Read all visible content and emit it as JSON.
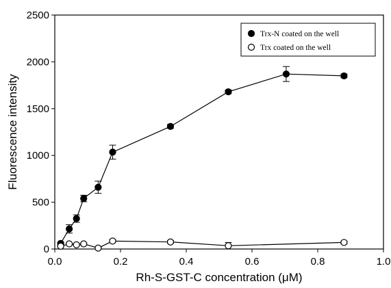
{
  "chart_data": {
    "type": "line",
    "xlabel": "Rh-S-GST-C concentration (μM)",
    "ylabel": "Fluorescence intensity",
    "xlim": [
      0.0,
      1.0
    ],
    "ylim": [
      0,
      2500
    ],
    "xticks": [
      0.0,
      0.2,
      0.4,
      0.6,
      0.8,
      1.0
    ],
    "xtick_labels": [
      "0.0",
      "0.2",
      "0.4",
      "0.6",
      "0.8",
      "1.0"
    ],
    "yticks": [
      0,
      500,
      1000,
      1500,
      2000,
      2500
    ],
    "ytick_labels": [
      "0",
      "500",
      "1000",
      "1500",
      "2000",
      "2500"
    ],
    "grid": false,
    "legend_position": "top-right",
    "series": [
      {
        "name": "Trx-N coated on the well",
        "marker": "filled-circle",
        "color": "#000000",
        "x": [
          0.018,
          0.044,
          0.066,
          0.088,
          0.132,
          0.176,
          0.352,
          0.528,
          0.704,
          0.88
        ],
        "y": [
          60,
          215,
          325,
          540,
          660,
          1035,
          1310,
          1680,
          1870,
          1850
        ],
        "error": [
          10,
          45,
          40,
          35,
          65,
          75,
          20,
          20,
          80,
          20
        ]
      },
      {
        "name": "Trx coated on the well",
        "marker": "open-circle",
        "color": "#000000",
        "x": [
          0.018,
          0.044,
          0.066,
          0.088,
          0.132,
          0.176,
          0.352,
          0.528,
          0.88
        ],
        "y": [
          30,
          55,
          45,
          55,
          10,
          85,
          75,
          35,
          70
        ],
        "error": [
          8,
          8,
          8,
          10,
          8,
          15,
          15,
          35,
          15
        ]
      }
    ]
  }
}
